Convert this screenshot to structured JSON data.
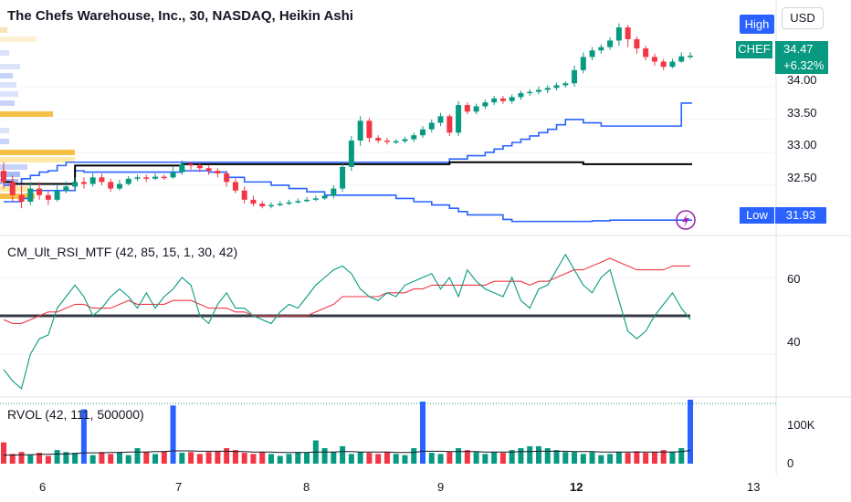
{
  "header": {
    "title": "The Chefs Warehouse, Inc., 30, NASDAQ, Heikin Ashi",
    "high_button": "High",
    "currency_button": "USD",
    "low_label": "Low"
  },
  "price_tag": {
    "symbol": "CHEF",
    "last": "34.47",
    "change": "+6.32%",
    "low": "31.93"
  },
  "colors": {
    "up": "#089981",
    "down": "#f23645",
    "rsi_line": "#089981",
    "rsi_ma": "#f23645",
    "band": "#2962ff",
    "mid": "#000000",
    "volume_high": "#2962ff",
    "alert_icon": "#9c27b0"
  },
  "chart_data": [
    {
      "type": "candlestick",
      "panel": "price",
      "title": "The Chefs Warehouse, Inc., 30, NASDAQ, Heikin Ashi",
      "x_tick_labels": [
        "6",
        "7",
        "8",
        "9",
        "12",
        "13"
      ],
      "y_ticks": [
        34.0,
        33.5,
        33.0,
        32.5
      ],
      "y_tick_labels": [
        "34.00",
        "33.50",
        "33.00",
        "32.50"
      ],
      "ylim": [
        31.82,
        34.9
      ],
      "candles": [
        [
          32.72,
          32.55,
          32.85,
          32.45
        ],
        [
          32.55,
          32.35,
          32.65,
          32.25
        ],
        [
          32.35,
          32.25,
          32.5,
          32.15
        ],
        [
          32.25,
          32.45,
          32.55,
          32.2
        ],
        [
          32.45,
          32.35,
          32.55,
          32.28
        ],
        [
          32.35,
          32.28,
          32.42,
          32.2
        ],
        [
          32.28,
          32.42,
          32.5,
          32.25
        ],
        [
          32.42,
          32.48,
          32.56,
          32.38
        ],
        [
          32.48,
          32.55,
          32.62,
          32.44
        ],
        [
          32.55,
          32.52,
          32.62,
          32.45
        ],
        [
          32.52,
          32.62,
          32.68,
          32.48
        ],
        [
          32.62,
          32.55,
          32.68,
          32.5
        ],
        [
          32.55,
          32.45,
          32.6,
          32.4
        ],
        [
          32.45,
          32.52,
          32.58,
          32.42
        ],
        [
          32.52,
          32.6,
          32.64,
          32.5
        ],
        [
          32.6,
          32.62,
          32.66,
          32.56
        ],
        [
          32.62,
          32.6,
          32.66,
          32.55
        ],
        [
          32.6,
          32.63,
          32.68,
          32.58
        ],
        [
          32.63,
          32.62,
          32.66,
          32.58
        ],
        [
          32.62,
          32.7,
          32.78,
          32.6
        ],
        [
          32.7,
          32.82,
          32.88,
          32.66
        ],
        [
          32.82,
          32.8,
          32.86,
          32.74
        ],
        [
          32.8,
          32.76,
          32.84,
          32.7
        ],
        [
          32.76,
          32.72,
          32.8,
          32.66
        ],
        [
          32.72,
          32.68,
          32.76,
          32.62
        ],
        [
          32.68,
          32.55,
          32.72,
          32.48
        ],
        [
          32.55,
          32.42,
          32.6,
          32.38
        ],
        [
          32.42,
          32.28,
          32.48,
          32.22
        ],
        [
          32.28,
          32.22,
          32.34,
          32.18
        ],
        [
          32.22,
          32.18,
          32.26,
          32.15
        ],
        [
          32.18,
          32.2,
          32.24,
          32.15
        ],
        [
          32.2,
          32.22,
          32.26,
          32.18
        ],
        [
          32.22,
          32.24,
          32.28,
          32.2
        ],
        [
          32.24,
          32.26,
          32.3,
          32.22
        ],
        [
          32.26,
          32.28,
          32.32,
          32.24
        ],
        [
          32.28,
          32.3,
          32.34,
          32.26
        ],
        [
          32.3,
          32.34,
          32.38,
          32.28
        ],
        [
          32.34,
          32.45,
          32.5,
          32.3
        ],
        [
          32.45,
          32.78,
          32.85,
          32.4
        ],
        [
          32.78,
          33.18,
          33.25,
          32.72
        ],
        [
          33.18,
          33.48,
          33.55,
          33.1
        ],
        [
          33.48,
          33.22,
          33.52,
          33.15
        ],
        [
          33.22,
          33.18,
          33.26,
          33.14
        ],
        [
          33.18,
          33.16,
          33.22,
          33.12
        ],
        [
          33.16,
          33.17,
          33.2,
          33.13
        ],
        [
          33.17,
          33.2,
          33.24,
          33.14
        ],
        [
          33.2,
          33.26,
          33.3,
          33.16
        ],
        [
          33.26,
          33.35,
          33.4,
          33.22
        ],
        [
          33.35,
          33.45,
          33.5,
          33.3
        ],
        [
          33.45,
          33.55,
          33.6,
          33.4
        ],
        [
          33.55,
          33.3,
          33.58,
          33.25
        ],
        [
          33.3,
          33.72,
          33.78,
          33.25
        ],
        [
          33.72,
          33.62,
          33.76,
          33.58
        ],
        [
          33.62,
          33.7,
          33.74,
          33.58
        ],
        [
          33.7,
          33.76,
          33.8,
          33.66
        ],
        [
          33.76,
          33.82,
          33.86,
          33.72
        ],
        [
          33.82,
          33.78,
          33.86,
          33.74
        ],
        [
          33.78,
          33.84,
          33.88,
          33.74
        ],
        [
          33.84,
          33.9,
          33.94,
          33.8
        ],
        [
          33.9,
          33.92,
          33.96,
          33.86
        ],
        [
          33.92,
          33.95,
          34.0,
          33.88
        ],
        [
          33.95,
          33.98,
          34.02,
          33.9
        ],
        [
          33.98,
          34.02,
          34.06,
          33.94
        ],
        [
          34.02,
          34.05,
          34.08,
          33.98
        ],
        [
          34.05,
          34.25,
          34.32,
          34.0
        ],
        [
          34.25,
          34.45,
          34.52,
          34.2
        ],
        [
          34.45,
          34.55,
          34.6,
          34.4
        ],
        [
          34.55,
          34.6,
          34.64,
          34.5
        ],
        [
          34.6,
          34.7,
          34.75,
          34.56
        ],
        [
          34.7,
          34.9,
          34.96,
          34.62
        ],
        [
          34.9,
          34.72,
          34.94,
          34.6
        ],
        [
          34.72,
          34.58,
          34.76,
          34.5
        ],
        [
          34.58,
          34.45,
          34.62,
          34.4
        ],
        [
          34.45,
          34.38,
          34.5,
          34.32
        ],
        [
          34.38,
          34.3,
          34.42,
          34.25
        ],
        [
          34.3,
          34.38,
          34.42,
          34.28
        ],
        [
          34.38,
          34.46,
          34.52,
          34.36
        ],
        [
          34.46,
          34.47,
          34.52,
          34.42
        ]
      ],
      "bands": {
        "upper": [
          32.5,
          32.52,
          32.6,
          32.65,
          32.7,
          32.72,
          32.8,
          32.85,
          32.85,
          32.85,
          32.85,
          32.85,
          32.85,
          32.85,
          32.85,
          32.85,
          32.85,
          32.85,
          32.85,
          32.85,
          32.85,
          32.85,
          32.85,
          32.85,
          32.85,
          32.85,
          32.85,
          32.85,
          32.85,
          32.85,
          32.85,
          32.85,
          32.85,
          32.85,
          32.85,
          32.85,
          32.85,
          32.85,
          32.85,
          32.85,
          32.85,
          32.85,
          32.85,
          32.85,
          32.85,
          32.85,
          32.85,
          32.85,
          32.85,
          32.85,
          32.9,
          32.9,
          32.95,
          32.95,
          33.0,
          33.05,
          33.1,
          33.15,
          33.2,
          33.25,
          33.3,
          33.35,
          33.42,
          33.5,
          33.5,
          33.45,
          33.45,
          33.4,
          33.4,
          33.4,
          33.4,
          33.4,
          33.4,
          33.4,
          33.4,
          33.4,
          33.75,
          33.75
        ],
        "mid": [
          32.55,
          32.52,
          32.52,
          32.52,
          32.52,
          32.52,
          32.52,
          32.52,
          32.8,
          32.8,
          32.8,
          32.8,
          32.8,
          32.8,
          32.8,
          32.8,
          32.8,
          32.8,
          32.8,
          32.8,
          32.82,
          32.82,
          32.82,
          32.82,
          32.82,
          32.82,
          32.82,
          32.82,
          32.82,
          32.82,
          32.82,
          32.82,
          32.82,
          32.82,
          32.82,
          32.82,
          32.82,
          32.82,
          32.82,
          32.82,
          32.82,
          32.82,
          32.82,
          32.82,
          32.82,
          32.82,
          32.82,
          32.82,
          32.82,
          32.82,
          32.85,
          32.85,
          32.85,
          32.85,
          32.85,
          32.85,
          32.85,
          32.85,
          32.85,
          32.85,
          32.85,
          32.85,
          32.85,
          32.85,
          32.85,
          32.82,
          32.82,
          32.82,
          32.82,
          32.82,
          32.82,
          32.82,
          32.82,
          32.82,
          32.82,
          32.82,
          32.82,
          32.82
        ],
        "lower": [
          32.25,
          32.25,
          32.3,
          32.42,
          32.42,
          32.42,
          32.42,
          32.42,
          32.72,
          32.7,
          32.7,
          32.7,
          32.7,
          32.7,
          32.7,
          32.7,
          32.7,
          32.7,
          32.7,
          32.7,
          32.72,
          32.72,
          32.72,
          32.7,
          32.7,
          32.62,
          32.62,
          32.55,
          32.55,
          32.55,
          32.5,
          32.5,
          32.45,
          32.45,
          32.4,
          32.4,
          32.35,
          32.35,
          32.35,
          32.35,
          32.35,
          32.35,
          32.35,
          32.35,
          32.3,
          32.3,
          32.25,
          32.25,
          32.2,
          32.2,
          32.15,
          32.1,
          32.05,
          32.05,
          32.05,
          32.05,
          31.98,
          31.95,
          31.95,
          31.95,
          31.95,
          31.95,
          31.95,
          31.95,
          31.95,
          31.95,
          31.96,
          31.96,
          31.97,
          31.97,
          31.97,
          31.97,
          31.97,
          31.97,
          31.97,
          31.97,
          31.97,
          31.97
        ]
      }
    },
    {
      "type": "line",
      "panel": "rsi",
      "label": "CM_Ult_RSI_MTF (42, 85, 15, 1, 30, 42)",
      "y_ticks": [
        60,
        40
      ],
      "y_tick_labels": [
        "60",
        "40"
      ],
      "ylim": [
        30,
        70
      ],
      "reference_line": 50,
      "series": [
        {
          "values": [
            36,
            33,
            31,
            40,
            44,
            45,
            52,
            55,
            58,
            55,
            50,
            52,
            55,
            57,
            55,
            52,
            56,
            52,
            55,
            57,
            60,
            58,
            50,
            48,
            53,
            56,
            52,
            52,
            50,
            49,
            48,
            51,
            53,
            52,
            55,
            58,
            60,
            62,
            63,
            61,
            57,
            55,
            54,
            56,
            55,
            58,
            59,
            60,
            61,
            57,
            60,
            55,
            62,
            59,
            57,
            56,
            55,
            60,
            54,
            52,
            57,
            58,
            62,
            66,
            62,
            58,
            56,
            60,
            62,
            54,
            46,
            44,
            46,
            50,
            53,
            56,
            52,
            49
          ]
        },
        {
          "values": [
            49,
            48,
            48,
            49,
            50,
            51,
            51,
            52,
            53,
            53,
            52,
            52,
            52,
            53,
            54,
            53,
            53,
            53,
            53,
            54,
            54,
            54,
            53,
            52,
            52,
            52,
            51,
            51,
            50,
            50,
            50,
            50,
            50,
            50,
            50,
            51,
            52,
            53,
            55,
            55,
            55,
            55,
            55,
            56,
            56,
            56,
            57,
            57,
            58,
            58,
            58,
            58,
            58,
            58,
            58,
            59,
            59,
            59,
            59,
            58,
            59,
            59,
            60,
            61,
            62,
            62,
            63,
            64,
            65,
            64,
            63,
            62,
            62,
            62,
            62,
            63,
            63,
            63
          ]
        }
      ]
    },
    {
      "type": "bar",
      "panel": "volume",
      "label": "RVOL (42, 111, 500000)",
      "y_ticks": [
        0,
        100000
      ],
      "y_tick_labels": [
        "0",
        "100K"
      ],
      "ylim": [
        0,
        160000
      ],
      "values": [
        55000,
        25000,
        30000,
        22000,
        28000,
        20000,
        35000,
        30000,
        28000,
        140000,
        22000,
        30000,
        25000,
        30000,
        22000,
        40000,
        30000,
        25000,
        32000,
        150000,
        28000,
        30000,
        25000,
        30000,
        32000,
        40000,
        35000,
        28000,
        25000,
        30000,
        25000,
        20000,
        25000,
        30000,
        28000,
        60000,
        40000,
        30000,
        45000,
        25000,
        30000,
        28000,
        25000,
        30000,
        25000,
        22000,
        40000,
        160000,
        28000,
        25000,
        30000,
        40000,
        35000,
        30000,
        25000,
        30000,
        28000,
        35000,
        40000,
        45000,
        45000,
        40000,
        35000,
        30000,
        30000,
        25000,
        30000,
        22000,
        25000,
        30000,
        28000,
        32000,
        28000,
        30000,
        35000,
        30000,
        40000,
        165000
      ],
      "highlighted_indices": [
        9,
        19,
        47,
        77
      ],
      "average": [
        22000,
        22000,
        23000,
        23000,
        24000,
        24000,
        25000,
        25000,
        26000,
        28000,
        28000,
        28000,
        29000,
        29000,
        30000,
        30000,
        30000,
        31000,
        31000,
        33000,
        33000,
        33000,
        32000,
        32000,
        32000,
        32000,
        31000,
        31000,
        30000,
        30000,
        30000,
        29000,
        29000,
        29000,
        29000,
        30000,
        30000,
        30000,
        31000,
        31000,
        30000,
        30000,
        30000,
        30000,
        29000,
        29000,
        29000,
        32000,
        32000,
        32000,
        31000,
        31000,
        31000,
        31000,
        30000,
        30000,
        30000,
        30000,
        31000,
        31000,
        32000,
        32000,
        32000,
        32000,
        31000,
        31000,
        31000,
        30000,
        30000,
        30000,
        30000,
        30000,
        30000,
        30000,
        30000,
        30000,
        31000,
        34000
      ]
    }
  ]
}
